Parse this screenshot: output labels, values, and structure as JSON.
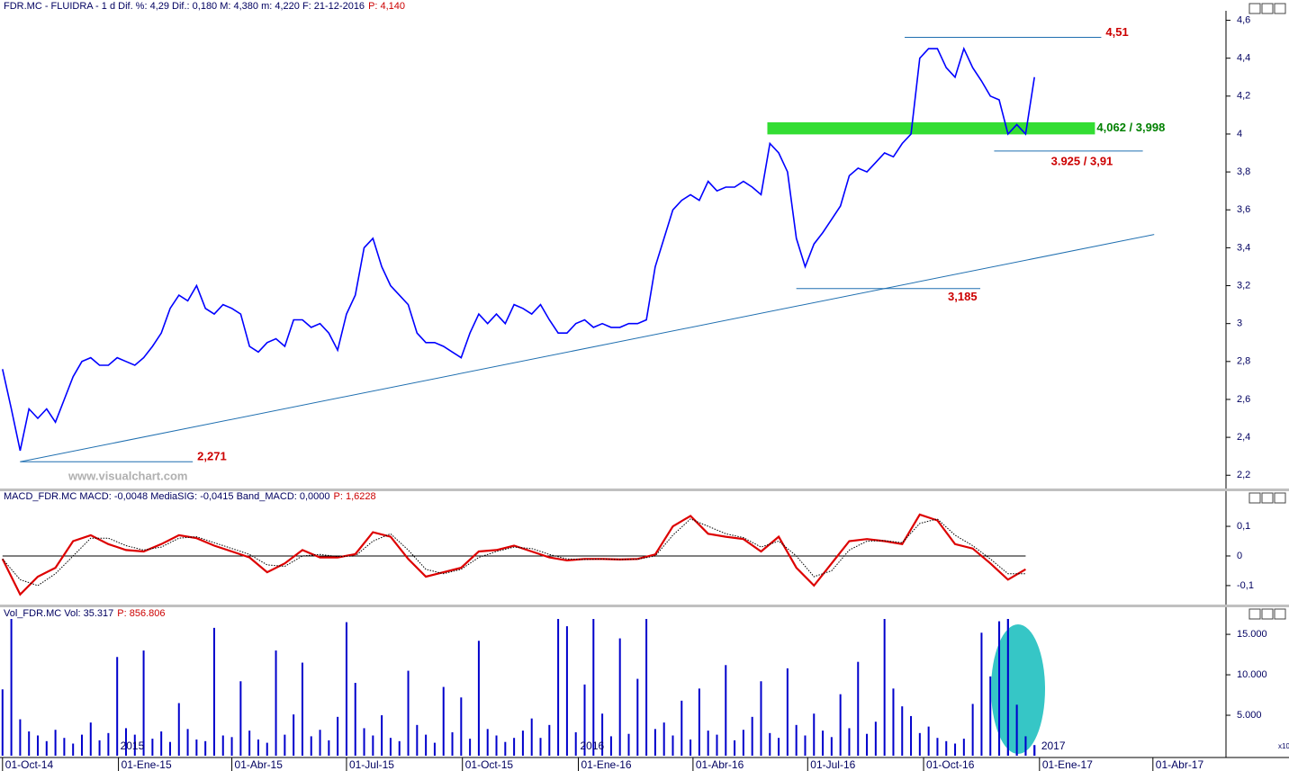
{
  "chart_data": [
    {
      "type": "line",
      "title": "FDR.MC - FLUIDRA - 1 d Dif. %: 4,29 Dif.: 0,180 M: 4,380 m: 4,220 F: 21-12-2016",
      "title_price": "P: 4,140",
      "watermark": "www.visualchart.com",
      "color": "#0000ff",
      "xlim": [
        -2,
        971
      ],
      "ylim": [
        2.13,
        4.65
      ],
      "yticks": [
        {
          "value": 2.2,
          "label": "2,2"
        },
        {
          "value": 2.4,
          "label": "2,4"
        },
        {
          "value": 2.6,
          "label": "2,6"
        },
        {
          "value": 2.8,
          "label": "2,8"
        },
        3,
        {
          "value": 3.2,
          "label": "3,2"
        },
        {
          "value": 3.4,
          "label": "3,4"
        },
        {
          "value": 3.6,
          "label": "3,6"
        },
        {
          "value": 3.8,
          "label": "3,8"
        },
        4,
        {
          "value": 4.2,
          "label": "4,2"
        },
        {
          "value": 4.4,
          "label": "4,4"
        },
        {
          "value": 4.6,
          "label": "4,6"
        }
      ],
      "x": [
        0,
        7,
        14,
        21,
        28,
        35,
        42,
        49,
        56,
        63,
        70,
        77,
        84,
        91,
        98,
        105,
        112,
        119,
        126,
        133,
        140,
        147,
        154,
        161,
        168,
        175,
        182,
        189,
        196,
        203,
        210,
        217,
        224,
        231,
        238,
        245,
        252,
        259,
        266,
        273,
        280,
        287,
        294,
        301,
        308,
        315,
        322,
        329,
        336,
        343,
        350,
        357,
        364,
        371,
        378,
        385,
        392,
        399,
        406,
        413,
        420,
        427,
        434,
        441,
        448,
        455,
        462,
        469,
        476,
        483,
        490,
        497,
        504,
        511,
        518,
        525,
        532,
        539,
        546,
        553,
        560,
        567,
        574,
        581,
        588,
        595,
        602,
        609,
        616,
        623,
        630,
        637,
        644,
        651,
        658,
        665,
        672,
        679,
        686,
        693,
        700,
        707,
        714,
        721,
        728,
        735,
        742,
        749,
        756,
        763,
        770,
        777,
        784,
        791,
        798,
        805,
        812,
        819
      ],
      "values": [
        2.76,
        2.55,
        2.33,
        2.55,
        2.5,
        2.55,
        2.48,
        2.6,
        2.72,
        2.8,
        2.82,
        2.78,
        2.78,
        2.82,
        2.8,
        2.78,
        2.82,
        2.88,
        2.95,
        3.08,
        3.15,
        3.12,
        3.2,
        3.08,
        3.05,
        3.1,
        3.08,
        3.05,
        2.88,
        2.85,
        2.9,
        2.92,
        2.88,
        3.02,
        3.02,
        2.98,
        3.0,
        2.95,
        2.86,
        3.05,
        3.15,
        3.4,
        3.45,
        3.3,
        3.2,
        3.15,
        3.1,
        2.95,
        2.9,
        2.9,
        2.88,
        2.85,
        2.82,
        2.95,
        3.05,
        3.0,
        3.05,
        3.0,
        3.1,
        3.08,
        3.05,
        3.1,
        3.02,
        2.95,
        2.95,
        3.0,
        3.02,
        2.98,
        3.0,
        2.98,
        2.98,
        3.0,
        3.0,
        3.02,
        3.3,
        3.45,
        3.6,
        3.65,
        3.68,
        3.65,
        3.75,
        3.7,
        3.72,
        3.72,
        3.75,
        3.72,
        3.68,
        3.95,
        3.9,
        3.8,
        3.45,
        3.3,
        3.42,
        3.48,
        3.55,
        3.62,
        3.78,
        3.82,
        3.8,
        3.85,
        3.9,
        3.88,
        3.95,
        4.0,
        4.4,
        4.45,
        4.45,
        4.35,
        4.3,
        4.45,
        4.35,
        4.28,
        4.2,
        4.18,
        4.0,
        4.05,
        4.0,
        4.3
      ],
      "levels": [
        {
          "value": 4.51,
          "label": "4,51",
          "x": [
            716,
            872
          ]
        },
        {
          "value": 3.185,
          "label": "3,185",
          "x": [
            630,
            776
          ]
        },
        {
          "value": 2.271,
          "label": "2,271",
          "x": [
            14,
            151
          ]
        }
      ],
      "support": {
        "values": [
          3.925,
          3.91
        ],
        "label": "3.925 / 3,91",
        "x": [
          787,
          905
        ]
      },
      "zone": {
        "values": [
          4.062,
          3.998
        ],
        "label": "4,062 / 3,998",
        "x": [
          607,
          867
        ],
        "color": "#33dd33"
      },
      "trendline": {
        "x": [
          14,
          914
        ],
        "values": [
          2.271,
          3.47
        ]
      }
    },
    {
      "type": "macd",
      "title": "MACD_FDR.MC MACD: -0,0048 MediaSIG: -0,0415 Band_MACD: 0,0000",
      "title_price": "P: 1,6228",
      "xlim": [
        -2,
        971
      ],
      "ylim": [
        -0.158,
        0.17
      ],
      "yticks": [
        {
          "value": -0.1,
          "label": "-0,1"
        },
        0,
        {
          "value": 0.1,
          "label": "0,1"
        }
      ],
      "x": [
        0,
        14,
        28,
        42,
        56,
        70,
        84,
        98,
        112,
        126,
        140,
        154,
        168,
        182,
        196,
        210,
        224,
        238,
        252,
        266,
        280,
        294,
        308,
        322,
        336,
        350,
        364,
        378,
        392,
        406,
        420,
        434,
        448,
        462,
        476,
        490,
        504,
        518,
        532,
        546,
        560,
        574,
        588,
        602,
        616,
        630,
        644,
        658,
        672,
        686,
        700,
        714,
        728,
        742,
        756,
        770,
        784,
        798,
        812
      ],
      "series": [
        {
          "color": "#dd0000",
          "values": [
            -0.01,
            -0.13,
            -0.07,
            -0.04,
            0.05,
            0.07,
            0.04,
            0.02,
            0.015,
            0.04,
            0.07,
            0.06,
            0.035,
            0.015,
            -0.005,
            -0.055,
            -0.025,
            0.02,
            -0.005,
            -0.005,
            0.006,
            0.08,
            0.065,
            -0.01,
            -0.07,
            -0.055,
            -0.04,
            0.015,
            0.02,
            0.035,
            0.015,
            -0.005,
            -0.015,
            -0.01,
            -0.01,
            -0.012,
            -0.01,
            0.005,
            0.1,
            0.135,
            0.075,
            0.065,
            0.057,
            0.015,
            0.065,
            -0.04,
            -0.1,
            -0.025,
            0.05,
            0.057,
            0.05,
            0.04,
            0.14,
            0.12,
            0.04,
            0.025,
            -0.025,
            -0.08,
            -0.045
          ]
        },
        {
          "color": "#000000",
          "values": [
            -0.01,
            -0.08,
            -0.1,
            -0.06,
            0.0,
            0.06,
            0.06,
            0.035,
            0.02,
            0.03,
            0.06,
            0.065,
            0.045,
            0.025,
            0.005,
            -0.03,
            -0.035,
            0.0,
            0.005,
            -0.002,
            0.0,
            0.05,
            0.075,
            0.02,
            -0.045,
            -0.06,
            -0.045,
            -0.005,
            0.015,
            0.03,
            0.025,
            0.005,
            -0.01,
            -0.012,
            -0.01,
            -0.012,
            -0.011,
            0.0,
            0.07,
            0.125,
            0.1,
            0.075,
            0.062,
            0.03,
            0.05,
            0.0,
            -0.07,
            -0.05,
            0.02,
            0.05,
            0.052,
            0.045,
            0.11,
            0.125,
            0.07,
            0.035,
            -0.01,
            -0.06,
            -0.06
          ]
        }
      ]
    },
    {
      "type": "bar",
      "title": "Vol_FDR.MC Vol: 35.317",
      "title_price": "P: 856.806",
      "color": "#0000cc",
      "xlim": [
        -2,
        971
      ],
      "ylim": [
        0,
        16900
      ],
      "yticks": [
        {
          "value": 5000,
          "label": "5.000"
        },
        {
          "value": 10000,
          "label": "10.000"
        },
        {
          "value": 15000,
          "label": "15.000"
        }
      ],
      "xticks": [
        {
          "value": 0,
          "label": "01-Oct-14"
        },
        {
          "value": 92,
          "label": "01-Ene-15"
        },
        {
          "value": 182,
          "label": "01-Abr-15"
        },
        {
          "value": 273,
          "label": "01-Jul-15"
        },
        {
          "value": 365,
          "label": "01-Oct-15"
        },
        {
          "value": 457,
          "label": "01-Ene-16"
        },
        {
          "value": 548,
          "label": "01-Abr-16"
        },
        {
          "value": 639,
          "label": "01-Jul-16"
        },
        {
          "value": 731,
          "label": "01-Oct-16"
        },
        {
          "value": 823,
          "label": "01-Ene-17"
        },
        {
          "value": 913,
          "label": "01-Abr-17"
        }
      ],
      "year_labels": [
        {
          "value": 92,
          "label": "2015"
        },
        {
          "value": 457,
          "label": "2016"
        },
        {
          "value": 823,
          "label": "2017"
        }
      ],
      "scale_note": "x10",
      "x": [
        0,
        7,
        14,
        21,
        28,
        35,
        42,
        49,
        56,
        63,
        70,
        77,
        84,
        91,
        98,
        105,
        112,
        119,
        126,
        133,
        140,
        147,
        154,
        161,
        168,
        175,
        182,
        189,
        196,
        203,
        210,
        217,
        224,
        231,
        238,
        245,
        252,
        259,
        266,
        273,
        280,
        287,
        294,
        301,
        308,
        315,
        322,
        329,
        336,
        343,
        350,
        357,
        364,
        371,
        378,
        385,
        392,
        399,
        406,
        413,
        420,
        427,
        434,
        441,
        448,
        455,
        462,
        469,
        476,
        483,
        490,
        497,
        504,
        511,
        518,
        525,
        532,
        539,
        546,
        553,
        560,
        567,
        574,
        581,
        588,
        595,
        602,
        609,
        616,
        623,
        630,
        637,
        644,
        651,
        658,
        665,
        672,
        679,
        686,
        693,
        700,
        707,
        714,
        721,
        728,
        735,
        742,
        749,
        756,
        763,
        770,
        777,
        784,
        791,
        798,
        805,
        812,
        819
      ],
      "values": [
        8200,
        17000,
        4500,
        3000,
        2500,
        1800,
        3200,
        2200,
        1500,
        2600,
        4100,
        1900,
        2800,
        12200,
        3400,
        2600,
        13000,
        2100,
        3000,
        1700,
        6500,
        3300,
        2000,
        1800,
        15800,
        2500,
        2300,
        9200,
        3100,
        2000,
        1600,
        13000,
        2600,
        5100,
        11500,
        2400,
        3200,
        1900,
        4800,
        16500,
        9000,
        3400,
        2500,
        5000,
        2200,
        1800,
        10500,
        3800,
        2600,
        1600,
        8500,
        2900,
        7200,
        2100,
        14200,
        3300,
        2500,
        1700,
        2200,
        3100,
        4600,
        2200,
        3800,
        17500,
        16000,
        2900,
        8800,
        17200,
        5200,
        2400,
        14500,
        2700,
        9500,
        17200,
        3300,
        4100,
        2500,
        6800,
        2000,
        8300,
        3100,
        2600,
        11200,
        1900,
        3200,
        4800,
        9200,
        2800,
        2200,
        10800,
        3800,
        2500,
        5200,
        3100,
        2300,
        7600,
        3400,
        11600,
        2700,
        4200,
        17600,
        8300,
        6100,
        4900,
        2800,
        3600,
        2200,
        1800,
        1500,
        2100,
        6400,
        15200,
        9800,
        16600,
        17200,
        6300,
        2400,
        1300
      ]
    }
  ]
}
